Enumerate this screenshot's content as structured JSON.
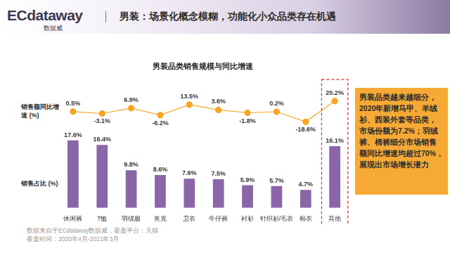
{
  "header": {
    "logo": "ECdataway",
    "logo_sub": "数据威",
    "title": "男装：场景化概念模糊，功能化小众品类存在机遇"
  },
  "chart_data": {
    "type": "bar",
    "title": "男装品类销售规模与同比增速",
    "categories": [
      "休闲裤",
      "T恤",
      "羽绒服",
      "夹克",
      "卫衣",
      "牛仔裤",
      "衬衫",
      "针织衫/毛衣",
      "棉衣",
      "其他"
    ],
    "series": [
      {
        "name": "销售占比 (%)",
        "type": "bar",
        "color": "#8a66a8",
        "values": [
          17.6,
          16.4,
          9.8,
          8.6,
          7.6,
          7.5,
          5.9,
          5.7,
          4.7,
          16.1
        ],
        "value_labels": [
          "17.6%",
          "16.4%",
          "9.8%",
          "8.6%",
          "7.6%",
          "7.5%",
          "5.9%",
          "5.7%",
          "4.7%",
          "16.1%"
        ]
      },
      {
        "name": "销售额同比增速 (%)",
        "type": "line",
        "axis": "y2",
        "color": "#f5a623",
        "marker": "circle",
        "line_style": "solid",
        "values": [
          0.5,
          -3.1,
          6.9,
          -6.2,
          13.5,
          3.6,
          -1.8,
          0.2,
          -18.6,
          20.2
        ],
        "value_labels": [
          "0.5%",
          "-3.1%",
          "6.9%",
          "-6.2%",
          "13.5%",
          "3.6%",
          "-1.8%",
          "0.2%",
          "-18.6%",
          "20.2%"
        ]
      }
    ],
    "ylim": [
      0,
      32
    ],
    "y2lim": [
      -180,
      50
    ],
    "grid": false,
    "tick_labels": "x",
    "data_labels": true
  },
  "note": "男装品类越来越细分，2020年新增马甲、羊绒衫、西装外套等品类，市场份额为7.2%；羽绒裤、棉裤细分市场销售额同比增速均超过70%，展现出市场增长潜力",
  "footer": [
    "数据来自于ECdataway数据威，覆盖平台：天猫",
    "覆盖时间：2020年4月-2021年3月"
  ]
}
